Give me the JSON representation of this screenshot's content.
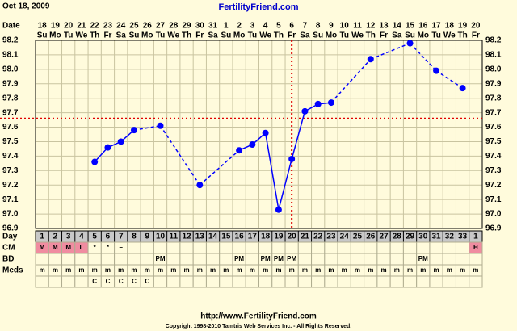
{
  "chart_data": {
    "type": "line",
    "title": "FertilityFriend.com",
    "date": "Oct 18, 2009",
    "date_header": "Date",
    "dates": [
      18,
      19,
      20,
      21,
      22,
      23,
      24,
      25,
      26,
      27,
      28,
      29,
      30,
      31,
      1,
      2,
      3,
      4,
      5,
      6,
      7,
      8,
      9,
      10,
      11,
      12,
      13,
      14,
      15,
      16,
      17,
      18,
      19,
      20
    ],
    "weekdays": [
      "Su",
      "Mo",
      "Tu",
      "We",
      "Th",
      "Fr",
      "Sa",
      "Su",
      "Mo",
      "Tu",
      "We",
      "Th",
      "Fr",
      "Sa",
      "Su",
      "Mo",
      "Tu",
      "We",
      "Th",
      "Fr",
      "Sa",
      "Su",
      "Mo",
      "Tu",
      "We",
      "Th",
      "Fr",
      "Sa",
      "Su",
      "Mo",
      "Tu",
      "We",
      "Th",
      "Fr"
    ],
    "day_header": "Day",
    "days": [
      1,
      2,
      3,
      4,
      5,
      6,
      7,
      8,
      9,
      10,
      11,
      12,
      13,
      14,
      15,
      16,
      17,
      18,
      19,
      20,
      21,
      22,
      23,
      24,
      25,
      26,
      27,
      28,
      29,
      30,
      31,
      32,
      33,
      1
    ],
    "ylim": [
      96.9,
      98.2
    ],
    "yticks": [
      96.9,
      {
        "value": 97.0,
        "label": "97.0"
      },
      97.1,
      97.2,
      97.3,
      97.4,
      97.5,
      97.6,
      97.7,
      97.8,
      97.9,
      {
        "value": 98.0,
        "label": "98.0"
      },
      98.1,
      98.2
    ],
    "grid": true,
    "series": [
      {
        "color": "#0000ff",
        "values": [
          null,
          null,
          null,
          null,
          97.36,
          97.46,
          97.5,
          97.58,
          null,
          97.61,
          null,
          null,
          97.2,
          null,
          null,
          97.44,
          97.48,
          97.56,
          97.03,
          97.38,
          97.71,
          97.76,
          97.77,
          null,
          null,
          98.07,
          null,
          null,
          98.18,
          null,
          97.99,
          null,
          97.87,
          null
        ]
      }
    ],
    "coverline": {
      "value": 97.66,
      "color": "#e00000"
    },
    "ovulation_day": 20,
    "rows": [
      {
        "label": "CM",
        "cells": [
          "M",
          "M",
          "M",
          "L",
          "*",
          "*",
          "–",
          null,
          null,
          null,
          null,
          null,
          null,
          null,
          null,
          null,
          null,
          null,
          null,
          null,
          null,
          null,
          null,
          null,
          null,
          null,
          null,
          null,
          null,
          null,
          null,
          null,
          null,
          "H"
        ],
        "cell_colors": [
          "#f08ca0",
          "#f08ca0",
          "#f08ca0",
          "#f08ca0",
          null,
          null,
          null,
          null,
          null,
          null,
          null,
          null,
          null,
          null,
          null,
          null,
          null,
          null,
          null,
          null,
          null,
          null,
          null,
          null,
          null,
          null,
          null,
          null,
          null,
          null,
          null,
          null,
          null,
          "#f08ca0"
        ]
      },
      {
        "label": "BD",
        "cells": [
          null,
          null,
          null,
          null,
          null,
          null,
          null,
          null,
          null,
          "PM",
          null,
          null,
          null,
          null,
          null,
          "PM",
          null,
          "PM",
          "PM",
          "PM",
          null,
          null,
          null,
          null,
          null,
          null,
          null,
          null,
          null,
          "PM",
          null,
          null,
          null,
          null
        ]
      },
      {
        "label": "Meds",
        "cells": [
          "m",
          "m",
          "m",
          "m",
          "m",
          "m",
          "m",
          "m",
          "m",
          "m",
          "m",
          "m",
          "m",
          "m",
          "m",
          "m",
          "m",
          "m",
          "m",
          "m",
          "m",
          "m",
          "m",
          "m",
          "m",
          "m",
          "m",
          "m",
          "m",
          "m",
          "m",
          "m",
          "m",
          "m"
        ]
      },
      {
        "cells": [
          null,
          null,
          null,
          null,
          "C",
          "C",
          "C",
          "C",
          "C",
          null,
          null,
          null,
          null,
          null,
          null,
          null,
          null,
          null,
          null,
          null,
          null,
          null,
          null,
          null,
          null,
          null,
          null,
          null,
          null,
          null,
          null,
          null,
          null,
          null
        ]
      }
    ],
    "url": "http://www.FertilityFriend.com",
    "copyright": "Copyright 1998-2010 Tamtris Web Services Inc. - All Rights Reserved."
  }
}
